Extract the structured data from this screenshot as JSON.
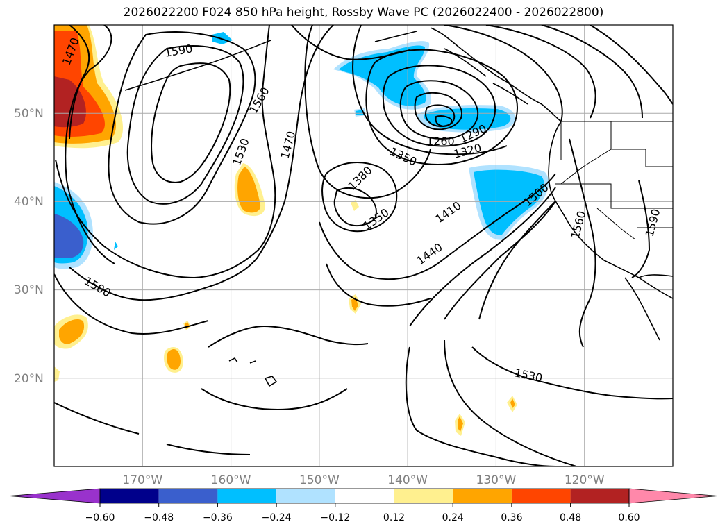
{
  "title": "2026022200 F024 850 hPa height, Rossby Wave PC (2026022400 - 2026022800)",
  "map": {
    "projection": "PlateCarree",
    "lon_range": [
      -180,
      -110
    ],
    "lat_range": [
      10,
      60
    ],
    "gridlines": true,
    "lat_ticks": [
      {
        "value": 50,
        "label": "50°N"
      },
      {
        "value": 40,
        "label": "40°N"
      },
      {
        "value": 30,
        "label": "30°N"
      },
      {
        "value": 20,
        "label": "20°N"
      }
    ],
    "lon_ticks": [
      {
        "value": -170,
        "label": "170°W"
      },
      {
        "value": -160,
        "label": "160°W"
      },
      {
        "value": -150,
        "label": "150°W"
      },
      {
        "value": -140,
        "label": "140°W"
      },
      {
        "value": -130,
        "label": "130°W"
      },
      {
        "value": -120,
        "label": "120°W"
      }
    ],
    "contour_labels": [
      "1470",
      "1590",
      "1560",
      "1530",
      "1470",
      "1500",
      "1380",
      "1350",
      "1350",
      "1260",
      "1290",
      "1320",
      "1410",
      "1440",
      "1500",
      "1560",
      "1590",
      "1530"
    ]
  },
  "colorbar": {
    "extend": "both",
    "levels": [
      -0.6,
      -0.48,
      -0.36,
      -0.24,
      -0.12,
      0.12,
      0.24,
      0.36,
      0.48,
      0.6
    ],
    "tick_labels": [
      "−0.60",
      "−0.48",
      "−0.36",
      "−0.24",
      "−0.12",
      "0.12",
      "0.24",
      "0.36",
      "0.48",
      "0.60"
    ],
    "colors": [
      "#9932cc",
      "#00008b",
      "#3a5fcd",
      "#00bfff",
      "#b0e2ff",
      "#ffffff",
      "#fff08f",
      "#ffa500",
      "#ff4500",
      "#b22222",
      "#ff88aa"
    ]
  }
}
